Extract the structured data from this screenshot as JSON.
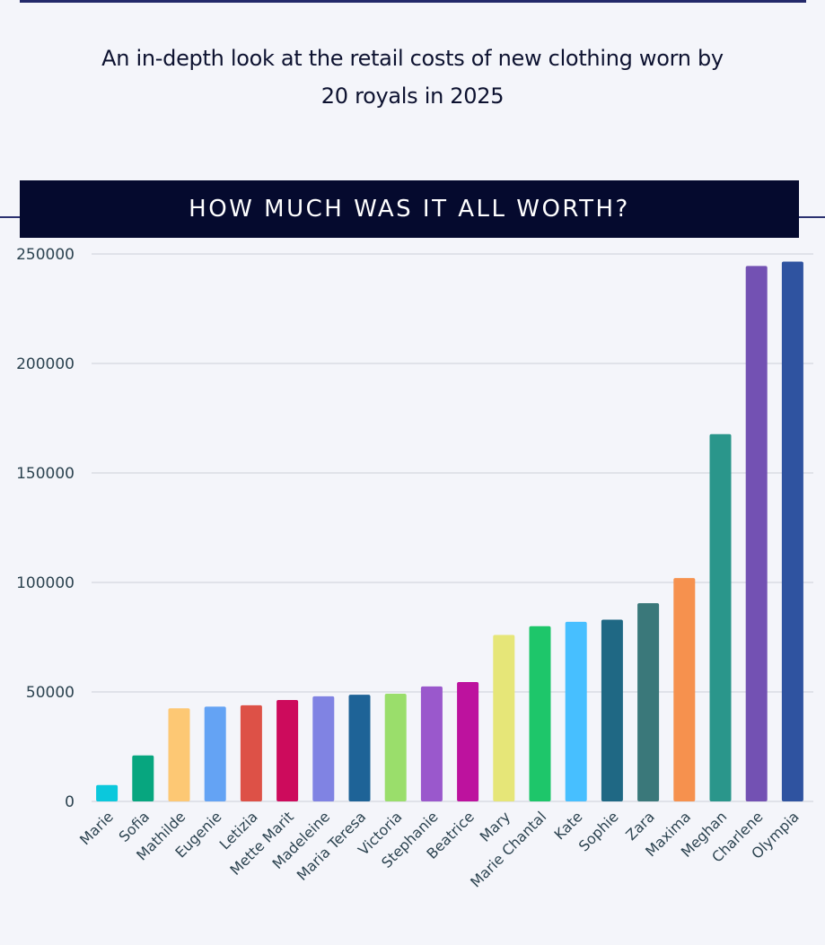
{
  "header": {
    "subtitle_line1": "An in-depth look at the retail costs of new clothing worn by",
    "subtitle_line2": "20 royals in 2025",
    "section_title": "HOW MUCH WAS IT ALL WORTH?"
  },
  "chart_data": {
    "type": "bar",
    "title": "HOW MUCH WAS IT ALL WORTH?",
    "xlabel": "",
    "ylabel": "",
    "ylim": [
      0,
      250000
    ],
    "yticks": [
      0,
      50000,
      100000,
      150000,
      200000,
      250000
    ],
    "ytick_labels": [
      "0",
      "50000",
      "100000",
      "150000",
      "200000",
      "250000"
    ],
    "grid": true,
    "legend": "none",
    "categories": [
      "Marie",
      "Sofia",
      "Mathilde",
      "Eugenie",
      "Letizia",
      "Mette Marit",
      "Madeleine",
      "Maria Teresa",
      "Victoria",
      "Stephanie",
      "Beatrice",
      "Mary",
      "Marie Chantal",
      "Kate",
      "Sophie",
      "Zara",
      "Maxima",
      "Meghan",
      "Charlene",
      "Olympia"
    ],
    "values": [
      7500,
      21000,
      42500,
      43300,
      43900,
      46300,
      48000,
      48700,
      49200,
      52500,
      54500,
      76000,
      80000,
      82000,
      83000,
      90500,
      102000,
      167700,
      244500,
      246500
    ],
    "colors": [
      "#0bc8dc",
      "#07a67f",
      "#fdc874",
      "#64a3f4",
      "#dd5147",
      "#cd0b5c",
      "#8083e3",
      "#1e6397",
      "#9ade6b",
      "#9a58cc",
      "#bd129e",
      "#e6e678",
      "#1ec66a",
      "#47bfff",
      "#1f6884",
      "#3a787a",
      "#f6914e",
      "#2a968b",
      "#7351b3",
      "#2f53a0"
    ]
  }
}
